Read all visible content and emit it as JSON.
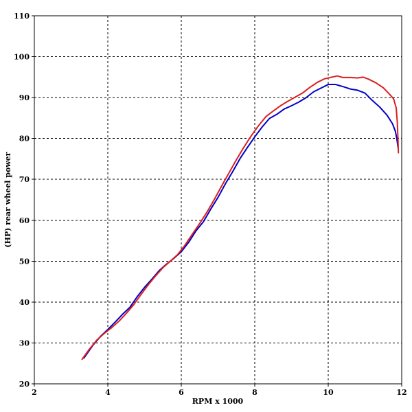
{
  "chart_data": {
    "type": "line",
    "title": "",
    "xlabel": "RPM x 1000",
    "ylabel": "(HP) rear wheel power",
    "xlim": [
      2,
      12
    ],
    "ylim": [
      20,
      110
    ],
    "x_ticks": [
      2,
      4,
      6,
      8,
      10,
      12
    ],
    "y_ticks": [
      20,
      30,
      40,
      50,
      60,
      70,
      80,
      90,
      100,
      110
    ],
    "grid": true,
    "legend": "none",
    "series": [
      {
        "color": "#0000c8",
        "points": [
          [
            3.35,
            26.3
          ],
          [
            3.6,
            29.5
          ],
          [
            3.8,
            31.6
          ],
          [
            4.0,
            33.3
          ],
          [
            4.2,
            35.1
          ],
          [
            4.4,
            37.0
          ],
          [
            4.6,
            38.7
          ],
          [
            4.8,
            41.3
          ],
          [
            5.0,
            43.6
          ],
          [
            5.2,
            45.6
          ],
          [
            5.4,
            47.7
          ],
          [
            5.6,
            49.3
          ],
          [
            5.8,
            50.7
          ],
          [
            6.0,
            52.3
          ],
          [
            6.2,
            54.6
          ],
          [
            6.4,
            57.4
          ],
          [
            6.6,
            59.6
          ],
          [
            6.8,
            62.7
          ],
          [
            7.0,
            65.6
          ],
          [
            7.2,
            68.9
          ],
          [
            7.4,
            71.9
          ],
          [
            7.6,
            75.1
          ],
          [
            7.8,
            77.8
          ],
          [
            8.0,
            80.4
          ],
          [
            8.2,
            82.8
          ],
          [
            8.4,
            84.9
          ],
          [
            8.6,
            85.9
          ],
          [
            8.8,
            87.2
          ],
          [
            9.0,
            88.0
          ],
          [
            9.2,
            88.9
          ],
          [
            9.4,
            90.0
          ],
          [
            9.6,
            91.4
          ],
          [
            9.8,
            92.3
          ],
          [
            10.0,
            93.2
          ],
          [
            10.2,
            93.2
          ],
          [
            10.4,
            92.7
          ],
          [
            10.6,
            92.1
          ],
          [
            10.8,
            91.8
          ],
          [
            11.0,
            91.1
          ],
          [
            11.2,
            89.3
          ],
          [
            11.4,
            87.7
          ],
          [
            11.6,
            85.7
          ],
          [
            11.75,
            83.6
          ],
          [
            11.83,
            81.7
          ],
          [
            11.87,
            79.8
          ],
          [
            11.9,
            77.8
          ]
        ]
      },
      {
        "color": "#dc1e1e",
        "points": [
          [
            3.3,
            26.0
          ],
          [
            3.5,
            28.5
          ],
          [
            3.7,
            30.7
          ],
          [
            3.9,
            32.3
          ],
          [
            4.1,
            33.7
          ],
          [
            4.3,
            35.3
          ],
          [
            4.5,
            37.2
          ],
          [
            4.7,
            39.3
          ],
          [
            4.9,
            41.8
          ],
          [
            5.1,
            44.2
          ],
          [
            5.3,
            46.4
          ],
          [
            5.5,
            48.4
          ],
          [
            5.7,
            50.0
          ],
          [
            5.9,
            51.6
          ],
          [
            6.1,
            53.9
          ],
          [
            6.3,
            56.6
          ],
          [
            6.5,
            59.2
          ],
          [
            6.7,
            62.0
          ],
          [
            6.9,
            65.1
          ],
          [
            7.1,
            68.4
          ],
          [
            7.3,
            71.6
          ],
          [
            7.5,
            74.8
          ],
          [
            7.7,
            77.8
          ],
          [
            7.9,
            80.6
          ],
          [
            8.1,
            83.1
          ],
          [
            8.3,
            85.3
          ],
          [
            8.5,
            86.7
          ],
          [
            8.7,
            88.0
          ],
          [
            8.9,
            89.1
          ],
          [
            9.1,
            90.1
          ],
          [
            9.3,
            91.1
          ],
          [
            9.5,
            92.5
          ],
          [
            9.7,
            93.7
          ],
          [
            9.9,
            94.6
          ],
          [
            10.1,
            95.0
          ],
          [
            10.25,
            95.3
          ],
          [
            10.4,
            94.9
          ],
          [
            10.6,
            94.9
          ],
          [
            10.8,
            94.8
          ],
          [
            10.95,
            95.0
          ],
          [
            11.1,
            94.5
          ],
          [
            11.3,
            93.6
          ],
          [
            11.5,
            92.4
          ],
          [
            11.65,
            91.0
          ],
          [
            11.78,
            89.7
          ],
          [
            11.85,
            87.5
          ],
          [
            11.88,
            84.0
          ],
          [
            11.9,
            79.5
          ],
          [
            11.91,
            76.5
          ]
        ]
      }
    ]
  }
}
